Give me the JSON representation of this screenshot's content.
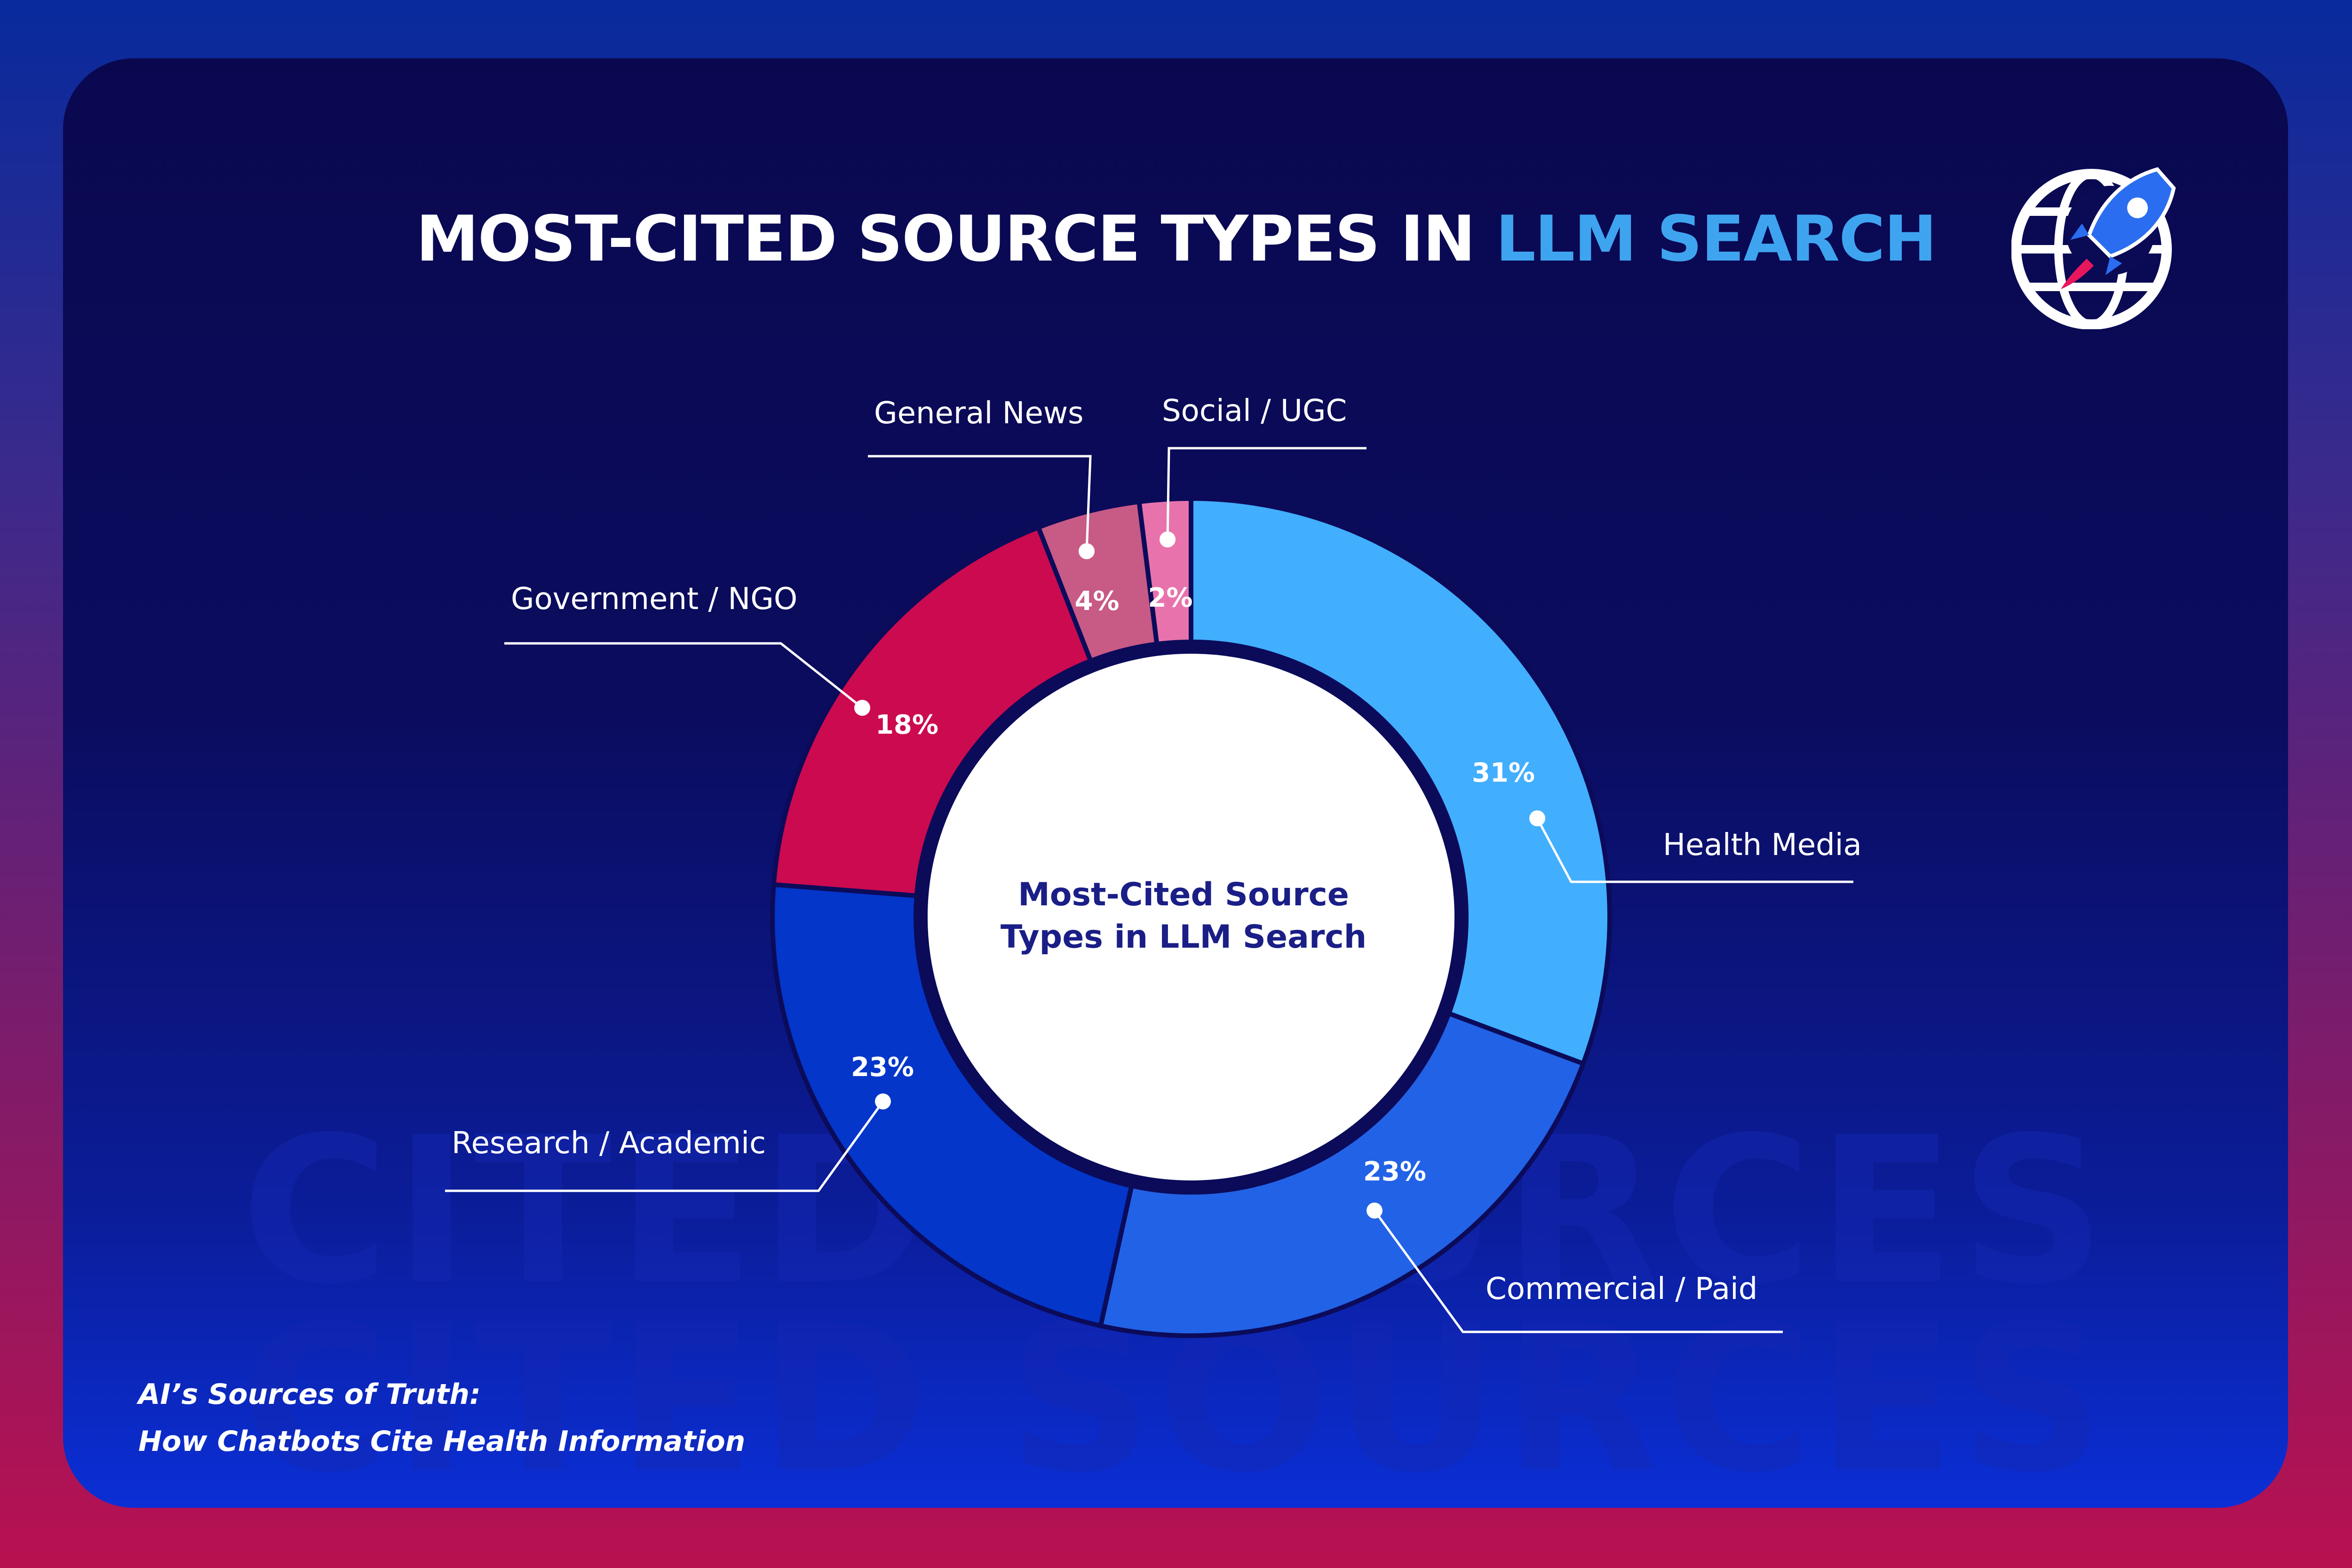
{
  "title": {
    "main": "MOST-CITED SOURCE TYPES IN ",
    "highlight": "LLM SEARCH"
  },
  "watermark": {
    "line1": "CITED SOURCES",
    "line2": "CITED SOURCES"
  },
  "footer": {
    "line1": "AI’s Sources of Truth:",
    "line2": "How Chatbots Cite Health Information"
  },
  "logo": {
    "icon": "globe-rocket-icon"
  },
  "chart_data": {
    "type": "pie",
    "style": "donut",
    "center_label": [
      "Most-Cited Source",
      "Types in LLM Search"
    ],
    "slices": [
      {
        "label": "Health Media",
        "value": 31,
        "value_label": "31%",
        "color": "#42aefe"
      },
      {
        "label": "Commercial / Paid",
        "value": 23,
        "value_label": "23%",
        "color": "#2262e6"
      },
      {
        "label": "Research / Academic",
        "value": 23,
        "value_label": "23%",
        "color": "#0336c9"
      },
      {
        "label": "Government / NGO",
        "value": 18,
        "value_label": "18%",
        "color": "#cc0a4f"
      },
      {
        "label": "General News",
        "value": 4,
        "value_label": "4%",
        "color": "#c85a86"
      },
      {
        "label": "Social / UGC",
        "value": 2,
        "value_label": "2%",
        "color": "#e873ac"
      }
    ],
    "colors": {
      "background_top": "#09084f",
      "center_fill": "#ffffff",
      "center_text": "#1a1e86",
      "title_highlight": "#3fa4f0"
    }
  }
}
